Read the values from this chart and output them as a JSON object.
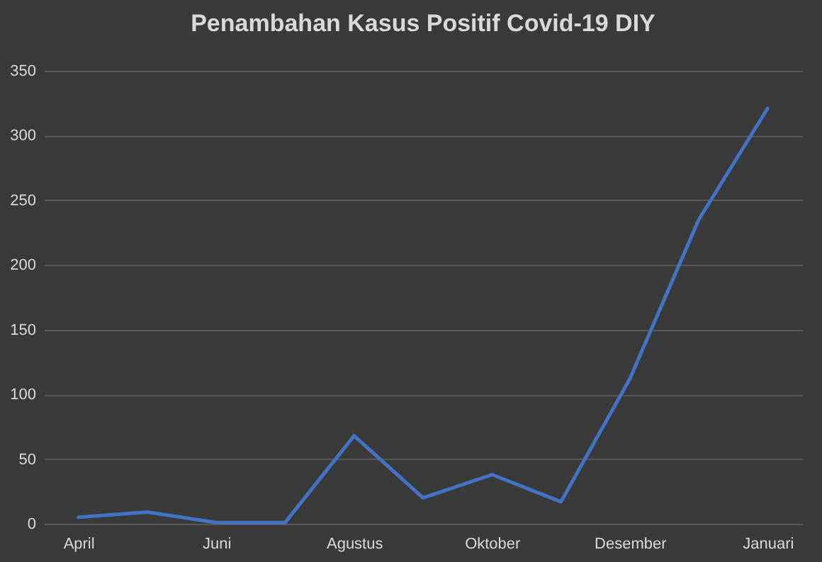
{
  "chart_data": {
    "type": "line",
    "title": "Penambahan Kasus Positif Covid-19 DIY",
    "categories": [
      "April",
      null,
      "Juni",
      null,
      "Agustus",
      null,
      "Oktober",
      null,
      "Desember",
      null,
      "Januari"
    ],
    "series": [
      {
        "color": "#4472c4",
        "values": [
          5,
          9,
          1,
          1,
          68,
          20,
          38,
          17,
          112,
          235,
          321
        ]
      }
    ],
    "ylim": [
      0,
      350
    ],
    "yticks": [
      0,
      50,
      100,
      150,
      200,
      250,
      300,
      350
    ],
    "grid": "y",
    "marker": "none",
    "line_style": "solid"
  }
}
